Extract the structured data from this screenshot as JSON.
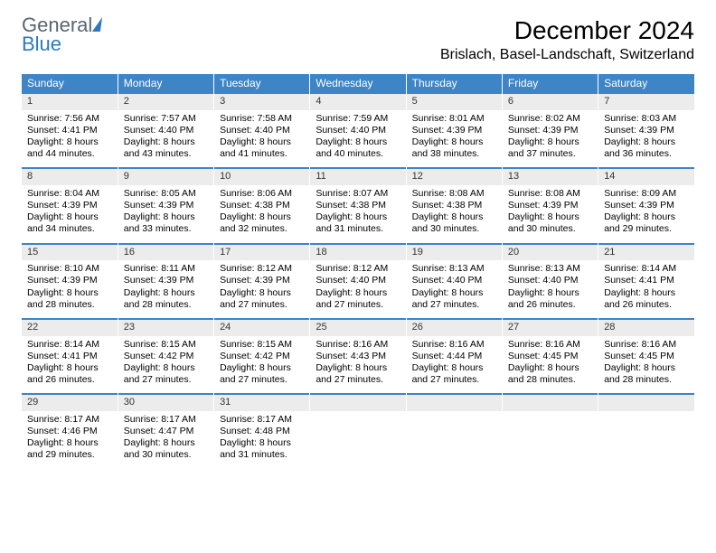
{
  "logo": {
    "word1": "General",
    "word2": "Blue"
  },
  "title": "December 2024",
  "location": "Brislach, Basel-Landschaft, Switzerland",
  "headers": [
    "Sunday",
    "Monday",
    "Tuesday",
    "Wednesday",
    "Thursday",
    "Friday",
    "Saturday"
  ],
  "colors": {
    "header_bg": "#3d85c6",
    "header_fg": "#ffffff",
    "daynum_bg": "#ececec",
    "rule": "#3d85c6"
  },
  "weeks": [
    [
      {
        "n": "1",
        "sr": "7:56 AM",
        "ss": "4:41 PM",
        "dl": "8 hours and 44 minutes."
      },
      {
        "n": "2",
        "sr": "7:57 AM",
        "ss": "4:40 PM",
        "dl": "8 hours and 43 minutes."
      },
      {
        "n": "3",
        "sr": "7:58 AM",
        "ss": "4:40 PM",
        "dl": "8 hours and 41 minutes."
      },
      {
        "n": "4",
        "sr": "7:59 AM",
        "ss": "4:40 PM",
        "dl": "8 hours and 40 minutes."
      },
      {
        "n": "5",
        "sr": "8:01 AM",
        "ss": "4:39 PM",
        "dl": "8 hours and 38 minutes."
      },
      {
        "n": "6",
        "sr": "8:02 AM",
        "ss": "4:39 PM",
        "dl": "8 hours and 37 minutes."
      },
      {
        "n": "7",
        "sr": "8:03 AM",
        "ss": "4:39 PM",
        "dl": "8 hours and 36 minutes."
      }
    ],
    [
      {
        "n": "8",
        "sr": "8:04 AM",
        "ss": "4:39 PM",
        "dl": "8 hours and 34 minutes."
      },
      {
        "n": "9",
        "sr": "8:05 AM",
        "ss": "4:39 PM",
        "dl": "8 hours and 33 minutes."
      },
      {
        "n": "10",
        "sr": "8:06 AM",
        "ss": "4:38 PM",
        "dl": "8 hours and 32 minutes."
      },
      {
        "n": "11",
        "sr": "8:07 AM",
        "ss": "4:38 PM",
        "dl": "8 hours and 31 minutes."
      },
      {
        "n": "12",
        "sr": "8:08 AM",
        "ss": "4:38 PM",
        "dl": "8 hours and 30 minutes."
      },
      {
        "n": "13",
        "sr": "8:08 AM",
        "ss": "4:39 PM",
        "dl": "8 hours and 30 minutes."
      },
      {
        "n": "14",
        "sr": "8:09 AM",
        "ss": "4:39 PM",
        "dl": "8 hours and 29 minutes."
      }
    ],
    [
      {
        "n": "15",
        "sr": "8:10 AM",
        "ss": "4:39 PM",
        "dl": "8 hours and 28 minutes."
      },
      {
        "n": "16",
        "sr": "8:11 AM",
        "ss": "4:39 PM",
        "dl": "8 hours and 28 minutes."
      },
      {
        "n": "17",
        "sr": "8:12 AM",
        "ss": "4:39 PM",
        "dl": "8 hours and 27 minutes."
      },
      {
        "n": "18",
        "sr": "8:12 AM",
        "ss": "4:40 PM",
        "dl": "8 hours and 27 minutes."
      },
      {
        "n": "19",
        "sr": "8:13 AM",
        "ss": "4:40 PM",
        "dl": "8 hours and 27 minutes."
      },
      {
        "n": "20",
        "sr": "8:13 AM",
        "ss": "4:40 PM",
        "dl": "8 hours and 26 minutes."
      },
      {
        "n": "21",
        "sr": "8:14 AM",
        "ss": "4:41 PM",
        "dl": "8 hours and 26 minutes."
      }
    ],
    [
      {
        "n": "22",
        "sr": "8:14 AM",
        "ss": "4:41 PM",
        "dl": "8 hours and 26 minutes."
      },
      {
        "n": "23",
        "sr": "8:15 AM",
        "ss": "4:42 PM",
        "dl": "8 hours and 27 minutes."
      },
      {
        "n": "24",
        "sr": "8:15 AM",
        "ss": "4:42 PM",
        "dl": "8 hours and 27 minutes."
      },
      {
        "n": "25",
        "sr": "8:16 AM",
        "ss": "4:43 PM",
        "dl": "8 hours and 27 minutes."
      },
      {
        "n": "26",
        "sr": "8:16 AM",
        "ss": "4:44 PM",
        "dl": "8 hours and 27 minutes."
      },
      {
        "n": "27",
        "sr": "8:16 AM",
        "ss": "4:45 PM",
        "dl": "8 hours and 28 minutes."
      },
      {
        "n": "28",
        "sr": "8:16 AM",
        "ss": "4:45 PM",
        "dl": "8 hours and 28 minutes."
      }
    ],
    [
      {
        "n": "29",
        "sr": "8:17 AM",
        "ss": "4:46 PM",
        "dl": "8 hours and 29 minutes."
      },
      {
        "n": "30",
        "sr": "8:17 AM",
        "ss": "4:47 PM",
        "dl": "8 hours and 30 minutes."
      },
      {
        "n": "31",
        "sr": "8:17 AM",
        "ss": "4:48 PM",
        "dl": "8 hours and 31 minutes."
      },
      null,
      null,
      null,
      null
    ]
  ],
  "labels": {
    "sunrise": "Sunrise: ",
    "sunset": "Sunset: ",
    "daylight": "Daylight: "
  }
}
